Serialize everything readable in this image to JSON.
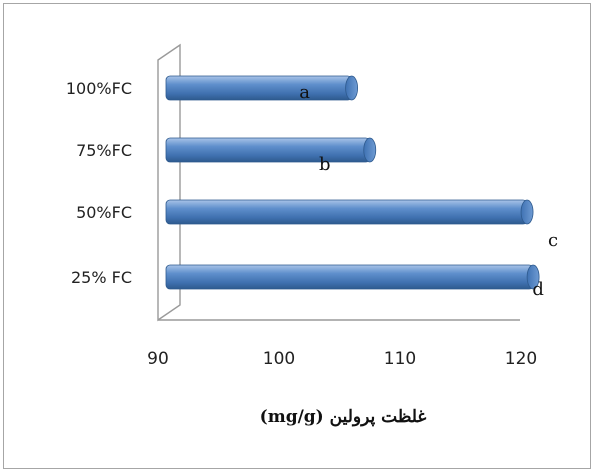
{
  "chart_data": {
    "type": "bar",
    "orientation": "horizontal",
    "categories": [
      "100%FC",
      "75%FC",
      "50%FC",
      "25% FC"
    ],
    "values": [
      106,
      107.5,
      120.5,
      121
    ],
    "data_labels": [
      "a",
      "b",
      "c",
      "d"
    ],
    "x_ticks": [
      "90",
      "100",
      "110",
      "120"
    ],
    "xlim": [
      90,
      125
    ],
    "xlabel": "(mg/g) غلظت پرولین",
    "ylabel": "",
    "grid": false,
    "legend": false,
    "colors": {
      "bar": "#4f81bd",
      "bar_dark": "#2e5a8e",
      "bar_light": "#a9c4e8"
    }
  }
}
